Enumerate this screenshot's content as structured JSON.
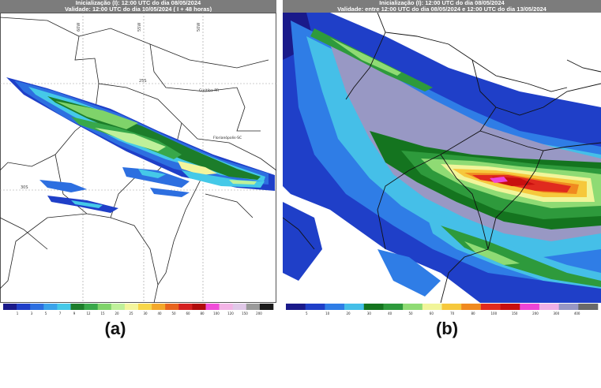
{
  "panels": [
    {
      "id": "a",
      "label": "(a)",
      "header_line1": "Inicialização (I): 12:00 UTC do dia 08/05/2024",
      "header_line2": "Validade: 12:00 UTC do dia 10/05/2024 ( I + 48 horas)",
      "place_labels": [
        "Curitiba-PR",
        "Florianópolis-SC"
      ],
      "grid_labels": [
        "60W",
        "55W",
        "50W",
        "25S",
        "30S"
      ],
      "colorbar_ticks": [
        "1",
        "3",
        "5",
        "7",
        "9",
        "12",
        "15",
        "20",
        "25",
        "30",
        "40",
        "50",
        "60",
        "80",
        "100",
        "120",
        "150",
        "200"
      ]
    },
    {
      "id": "b",
      "label": "(b)",
      "header_line1": "Inicialização (I): 12:00 UTC do dia 08/05/2024",
      "header_line2": "Validade: entre 12:00 UTC do dia 08/05/2024 e 12:00 UTC do dia 13/05/2024",
      "colorbar_ticks": [
        "5",
        "10",
        "20",
        "30",
        "40",
        "50",
        "60",
        "70",
        "80",
        "100",
        "150",
        "200",
        "300",
        "400"
      ]
    }
  ],
  "colors": {
    "scale_a": [
      "#1a1a8a",
      "#1f3fc8",
      "#2d6fe0",
      "#3aa3ea",
      "#45c9e8",
      "#1c7d2a",
      "#38a84a",
      "#7fd36a",
      "#bff09a",
      "#f3f59c",
      "#f7d64a",
      "#f3a82a",
      "#e8641e",
      "#d42020",
      "#b00b0b",
      "#f04cd8",
      "#f3b4e6",
      "#e0c8e8",
      "#9a9a9a",
      "#1a1a1a"
    ],
    "scale_b": [
      "#1a1a8a",
      "#1f3fc8",
      "#2f7de6",
      "#45bfe8",
      "#14741f",
      "#2e9a3c",
      "#8fdb74",
      "#f1f59a",
      "#f6c83c",
      "#f08a20",
      "#e02a1e",
      "#c80f0f",
      "#ee45d6",
      "#f0b0e6",
      "#9898c4",
      "#6a6a6a"
    ]
  }
}
